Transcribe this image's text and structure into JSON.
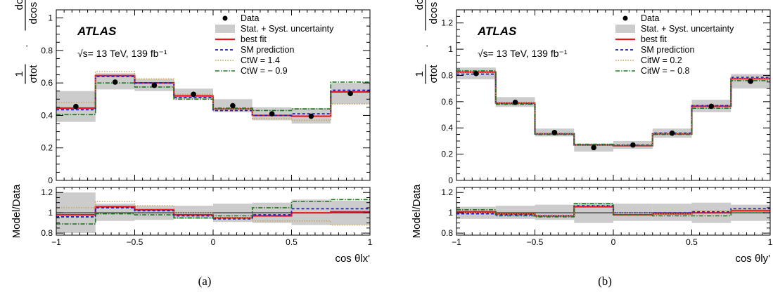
{
  "chart_data": [
    {
      "type": "line",
      "panel": "(a)",
      "caption": "(a)",
      "atlas_label": "ATLAS",
      "energy_label": "√s= 13 TeV, 139 fb⁻¹",
      "ylabel_prefix": "1",
      "ylabel_denom": "σtot",
      "ylabel_frac_num": "dσ",
      "ylabel_frac_den": "dcos θlx'",
      "ratio_ylabel": "Model/Data",
      "xlabel": "cos θlx'",
      "xlim": [
        -1,
        1
      ],
      "ylim": [
        0,
        1.05
      ],
      "ratio_ylim": [
        0.78,
        1.25
      ],
      "x_ticks": [
        "−1",
        "−0.5",
        "0",
        "0.5",
        "1"
      ],
      "y_ticks": [
        "0",
        "0.2",
        "0.4",
        "0.6",
        "0.8",
        "1"
      ],
      "ratio_ticks": [
        "0.8",
        "1",
        "1.2"
      ],
      "bin_edges": [
        -1,
        -0.75,
        -0.5,
        -0.25,
        0,
        0.25,
        0.5,
        0.75,
        1
      ],
      "legend": {
        "data": "Data",
        "unc": "Stat. + Syst. uncertainty",
        "best_fit": "best fit",
        "sm": "SM prediction",
        "c1": "CtW = 1.4",
        "c2": "CtW = − 0.9"
      },
      "series": [
        {
          "name": "Data",
          "values": [
            0.455,
            0.605,
            0.585,
            0.53,
            0.46,
            0.41,
            0.395,
            0.535
          ]
        },
        {
          "name": "Stat. + Syst. uncertainty",
          "low": [
            0.36,
            0.56,
            0.55,
            0.5,
            0.42,
            0.37,
            0.35,
            0.47
          ],
          "high": [
            0.55,
            0.66,
            0.625,
            0.565,
            0.5,
            0.45,
            0.445,
            0.6
          ]
        },
        {
          "name": "best fit",
          "values": [
            0.445,
            0.645,
            0.6,
            0.52,
            0.44,
            0.4,
            0.395,
            0.545
          ]
        },
        {
          "name": "SM prediction",
          "values": [
            0.435,
            0.64,
            0.6,
            0.51,
            0.43,
            0.4,
            0.41,
            0.555
          ]
        },
        {
          "name": "CtW = 1.4",
          "values": [
            0.48,
            0.67,
            0.625,
            0.53,
            0.44,
            0.38,
            0.37,
            0.47
          ]
        },
        {
          "name": "CtW = − 0.9",
          "values": [
            0.405,
            0.6,
            0.575,
            0.5,
            0.445,
            0.43,
            0.44,
            0.605
          ]
        }
      ],
      "ratio_series": [
        {
          "name": "Stat. + Syst. uncertainty",
          "low": [
            0.8,
            0.92,
            0.93,
            0.94,
            0.91,
            0.9,
            0.88,
            0.88
          ],
          "high": [
            1.2,
            1.09,
            1.07,
            1.07,
            1.09,
            1.1,
            1.13,
            1.12
          ]
        },
        {
          "name": "best fit",
          "values": [
            0.98,
            1.06,
            1.03,
            0.98,
            0.95,
            0.97,
            1.0,
            1.01
          ]
        },
        {
          "name": "SM prediction",
          "values": [
            0.96,
            1.05,
            1.02,
            0.97,
            0.94,
            0.98,
            1.04,
            1.04
          ]
        },
        {
          "name": "CtW = 1.4",
          "values": [
            1.05,
            1.11,
            1.07,
            1.0,
            0.95,
            0.92,
            0.92,
            0.88
          ]
        },
        {
          "name": "CtW = − 0.9",
          "values": [
            0.89,
            0.99,
            0.98,
            0.95,
            0.97,
            1.05,
            1.11,
            1.13
          ]
        }
      ]
    },
    {
      "type": "line",
      "panel": "(b)",
      "caption": "(b)",
      "atlas_label": "ATLAS",
      "energy_label": "√s= 13 TeV, 139 fb⁻¹",
      "ylabel_prefix": "1",
      "ylabel_denom": "σtot",
      "ylabel_frac_num": "dσ",
      "ylabel_frac_den": "dcos θly'",
      "ratio_ylabel": "Model/Data",
      "xlabel": "cos θly'",
      "xlim": [
        -1,
        1
      ],
      "ylim": [
        0,
        1.3
      ],
      "ratio_ylim": [
        0.78,
        1.25
      ],
      "x_ticks": [
        "−1",
        "−0.5",
        "0",
        "0.5",
        "1"
      ],
      "y_ticks": [
        "0",
        "0.2",
        "0.4",
        "0.6",
        "0.8",
        "1",
        "1.2"
      ],
      "ratio_ticks": [
        "0.8",
        "1",
        "1.2"
      ],
      "bin_edges": [
        -1,
        -0.75,
        -0.5,
        -0.25,
        0,
        0.25,
        0.5,
        0.75,
        1
      ],
      "legend": {
        "data": "Data",
        "unc": "Stat. + Syst. uncertainty",
        "best_fit": "best fit",
        "sm": "SM prediction",
        "c1": "CitW = 0.2",
        "c2": "CitW = − 0.8"
      },
      "series": [
        {
          "name": "Data",
          "values": [
            0.815,
            0.595,
            0.365,
            0.25,
            0.27,
            0.36,
            0.565,
            0.755
          ]
        },
        {
          "name": "Stat. + Syst. uncertainty",
          "low": [
            0.77,
            0.56,
            0.335,
            0.22,
            0.24,
            0.325,
            0.52,
            0.7
          ],
          "high": [
            0.86,
            0.635,
            0.395,
            0.28,
            0.3,
            0.395,
            0.615,
            0.81
          ]
        },
        {
          "name": "best fit",
          "values": [
            0.825,
            0.59,
            0.355,
            0.27,
            0.265,
            0.355,
            0.565,
            0.775
          ]
        },
        {
          "name": "SM prediction",
          "values": [
            0.81,
            0.585,
            0.355,
            0.27,
            0.27,
            0.36,
            0.57,
            0.785
          ]
        },
        {
          "name": "CitW = 0.2",
          "values": [
            0.82,
            0.59,
            0.355,
            0.27,
            0.27,
            0.355,
            0.575,
            0.78
          ]
        },
        {
          "name": "CitW = − 0.8",
          "values": [
            0.835,
            0.58,
            0.35,
            0.275,
            0.265,
            0.35,
            0.55,
            0.76
          ]
        }
      ],
      "ratio_series": [
        {
          "name": "Stat. + Syst. uncertainty",
          "low": [
            0.94,
            0.94,
            0.93,
            0.9,
            0.92,
            0.92,
            0.9,
            0.92
          ],
          "high": [
            1.06,
            1.07,
            1.08,
            1.1,
            1.09,
            1.09,
            1.1,
            1.08
          ]
        },
        {
          "name": "best fit",
          "values": [
            1.01,
            0.99,
            0.97,
            1.06,
            0.98,
            0.99,
            1.0,
            1.02
          ]
        },
        {
          "name": "SM prediction",
          "values": [
            0.99,
            0.98,
            0.97,
            1.07,
            1.0,
            1.0,
            1.01,
            1.04
          ]
        },
        {
          "name": "CitW = 0.2",
          "values": [
            1.0,
            0.99,
            0.97,
            1.07,
            1.0,
            0.99,
            1.02,
            1.03
          ]
        },
        {
          "name": "CitW = − 0.8",
          "values": [
            1.03,
            0.97,
            0.96,
            1.09,
            0.98,
            0.97,
            0.97,
            1.0
          ]
        }
      ]
    }
  ],
  "style": {
    "data_color": "#000000",
    "band_color": "#cccccc",
    "best_fit_color": "#e8161b",
    "sm_color": "#1f1fc8",
    "c1_color": "#c8a050",
    "c2_color": "#1b7a1b"
  }
}
